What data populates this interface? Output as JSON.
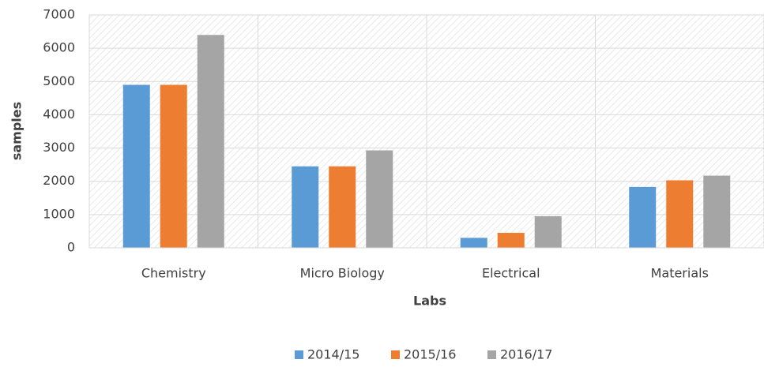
{
  "chart_data": {
    "type": "bar",
    "categories": [
      "Chemistry",
      "Micro Biology",
      "Electrical",
      "Materials"
    ],
    "series": [
      {
        "name": "2014/15",
        "color": "#5b9bd5",
        "values": [
          4900,
          2450,
          300,
          1830
        ]
      },
      {
        "name": "2015/16",
        "color": "#ed7d31",
        "values": [
          4900,
          2450,
          450,
          2030
        ]
      },
      {
        "name": "2016/17",
        "color": "#a5a5a5",
        "values": [
          6400,
          2930,
          950,
          2170
        ]
      }
    ],
    "x_label": "Labs",
    "y_label": "samples",
    "ylim": [
      0,
      7000
    ],
    "yticks": [
      0,
      1000,
      2000,
      3000,
      4000,
      5000,
      6000,
      7000
    ],
    "grid": true,
    "legend": "bottom"
  }
}
